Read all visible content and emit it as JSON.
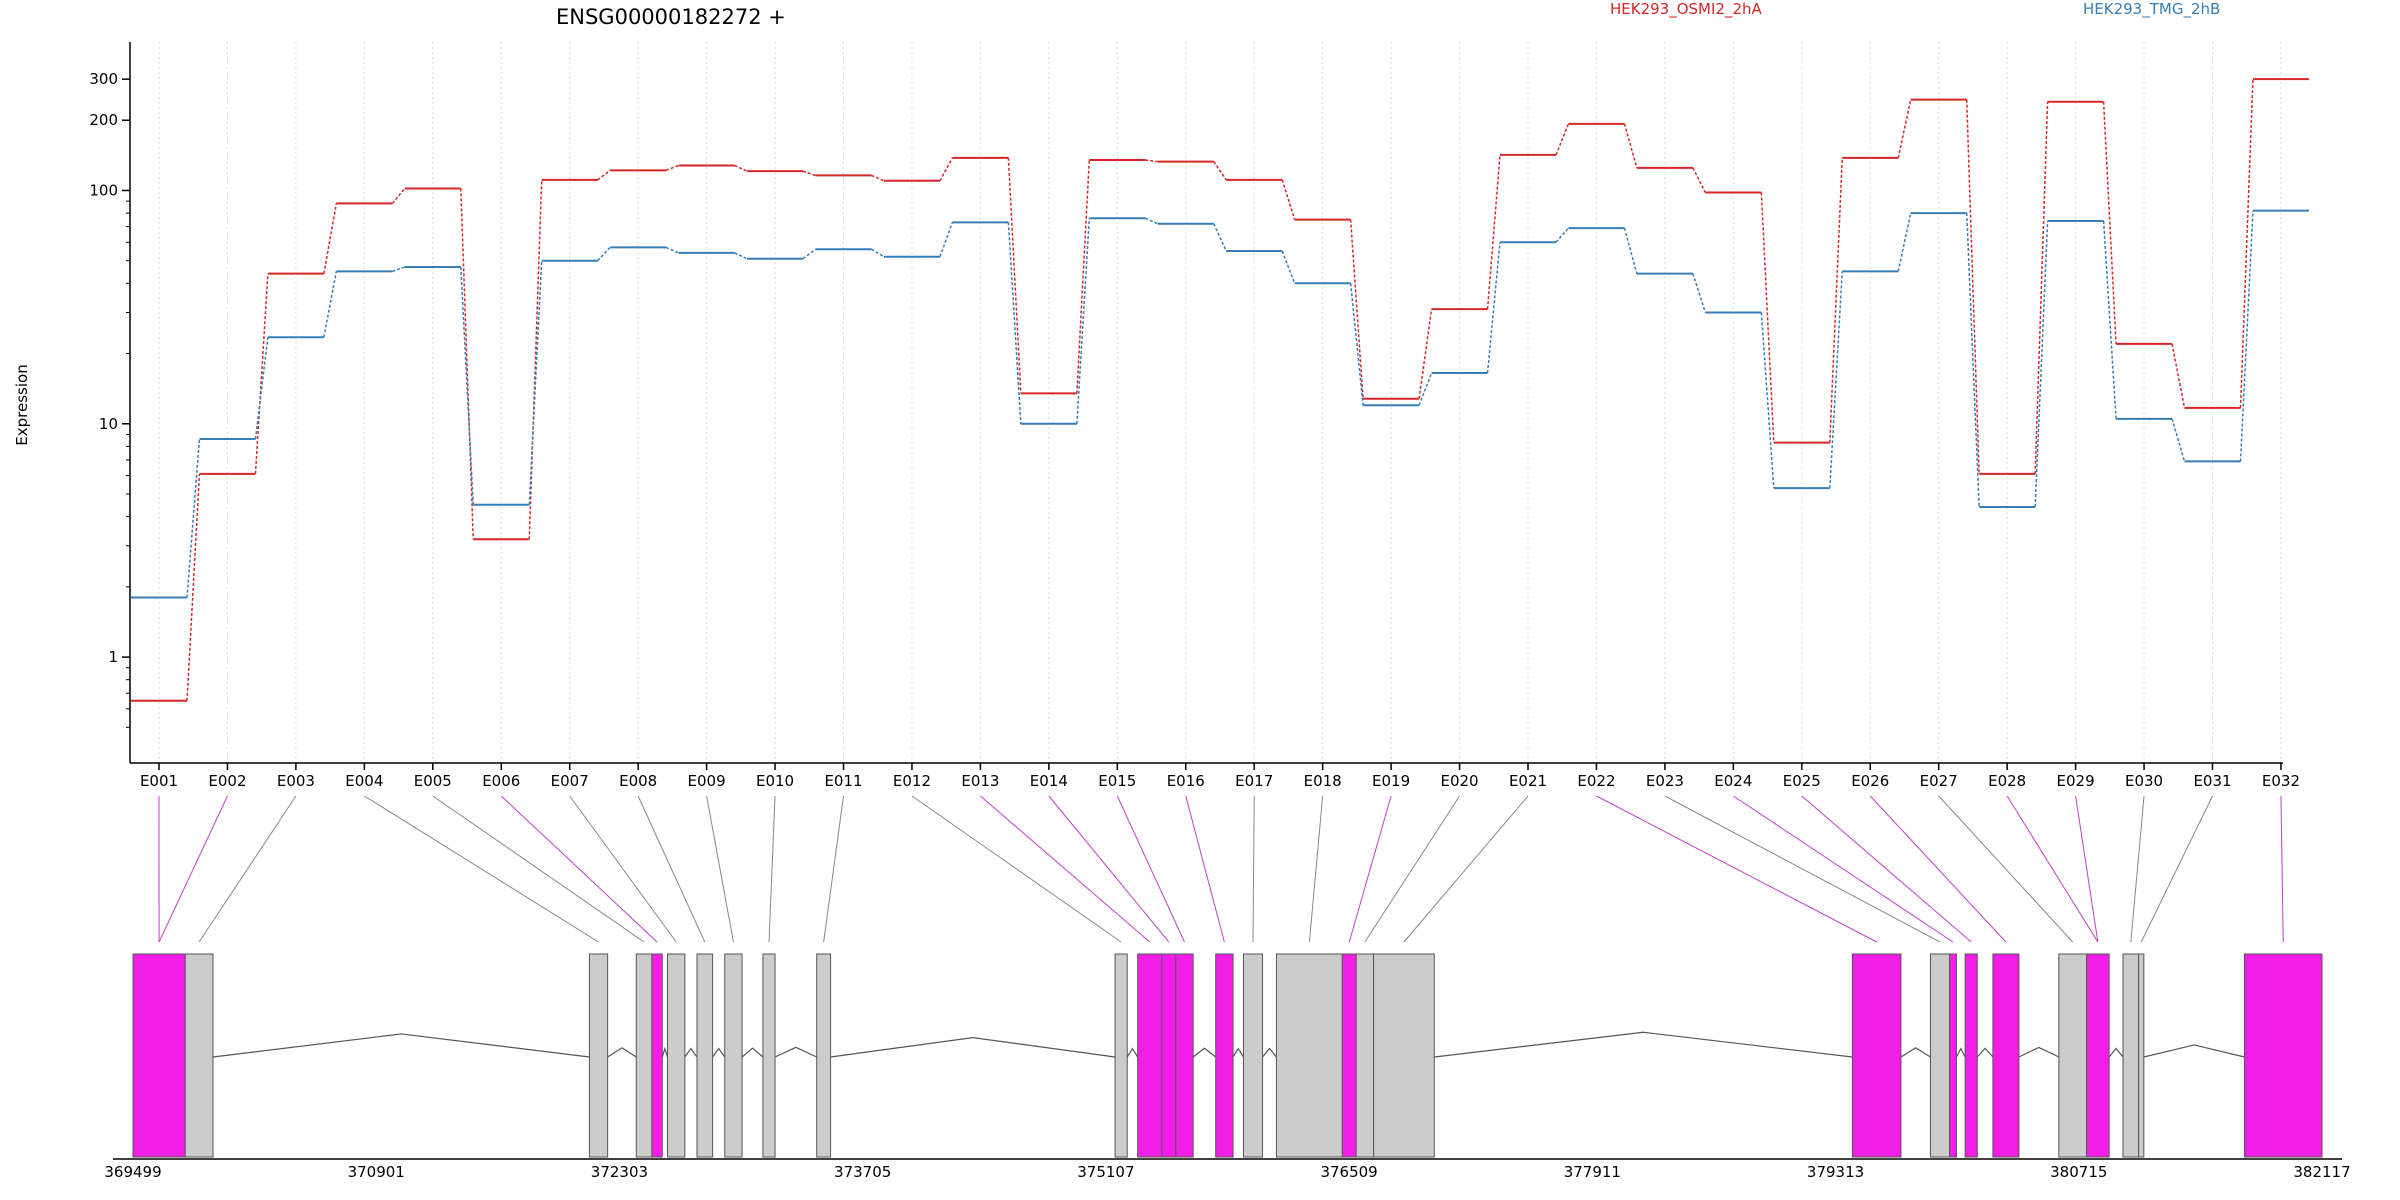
{
  "chart_data": {
    "type": "line",
    "title": "ENSG00000182272 +",
    "ylabel": "Expression",
    "xlabel": "",
    "y_scale": "log",
    "ylim": [
      0.45,
      400
    ],
    "y_ticks": [
      1,
      10,
      100,
      200,
      300
    ],
    "y_tick_labels": [
      "1",
      "10",
      "100",
      "200",
      "300"
    ],
    "grid": "vertical dotted lines at exon positions",
    "legend_placement": "top",
    "categories": [
      "E001",
      "E002",
      "E003",
      "E004",
      "E005",
      "E006",
      "E007",
      "E008",
      "E009",
      "E010",
      "E011",
      "E012",
      "E013",
      "E014",
      "E015",
      "E016",
      "E017",
      "E018",
      "E019",
      "E020",
      "E021",
      "E022",
      "E023",
      "E024",
      "E025",
      "E026",
      "E027",
      "E028",
      "E029",
      "E030",
      "E031",
      "E032"
    ],
    "series": [
      {
        "name": "HEK293_OSMI2_2hA",
        "color": "#d62728",
        "values": [
          0.65,
          6.1,
          44,
          88,
          102,
          3.2,
          111,
          122,
          128,
          121,
          116,
          110,
          138,
          13.5,
          135,
          133,
          111,
          75,
          12.8,
          31,
          142,
          193,
          125,
          98,
          8.3,
          138,
          245,
          6.1,
          240,
          22,
          11.7,
          300
        ]
      },
      {
        "name": "HEK293_TMG_2hB",
        "color": "#377eb8",
        "values": [
          1.8,
          8.6,
          23.5,
          45,
          47,
          4.5,
          50,
          57,
          54,
          51,
          56,
          52,
          73,
          10,
          76,
          72,
          55,
          40,
          12,
          16.5,
          60,
          69,
          44,
          30,
          5.3,
          45,
          80,
          4.4,
          74,
          10.5,
          6.9,
          82
        ]
      }
    ],
    "genomic_axis": {
      "ticks": [
        369499,
        370901,
        372303,
        373705,
        375107,
        376509,
        377911,
        379313,
        380715,
        382117
      ],
      "tick_labels": [
        "369499",
        "370901",
        "372303",
        "373705",
        "375107",
        "376509",
        "377911",
        "379313",
        "380715",
        "382117"
      ],
      "range": [
        369499,
        382117
      ]
    },
    "exon_blocks": [
      {
        "start": 369499,
        "end": 369800,
        "highlight": true
      },
      {
        "start": 369800,
        "end": 369960,
        "highlight": false
      },
      {
        "start": 372130,
        "end": 372235,
        "highlight": false
      },
      {
        "start": 372400,
        "end": 372490,
        "highlight": false
      },
      {
        "start": 372490,
        "end": 372550,
        "highlight": true
      },
      {
        "start": 372580,
        "end": 372680,
        "highlight": false
      },
      {
        "start": 372750,
        "end": 372840,
        "highlight": false
      },
      {
        "start": 372910,
        "end": 373010,
        "highlight": false
      },
      {
        "start": 373130,
        "end": 373200,
        "highlight": false
      },
      {
        "start": 373440,
        "end": 373520,
        "highlight": false
      },
      {
        "start": 375160,
        "end": 375230,
        "highlight": false
      },
      {
        "start": 375290,
        "end": 375430,
        "highlight": true
      },
      {
        "start": 375430,
        "end": 375510,
        "highlight": true
      },
      {
        "start": 375510,
        "end": 375610,
        "highlight": true
      },
      {
        "start": 375740,
        "end": 375840,
        "highlight": true
      },
      {
        "start": 375900,
        "end": 376010,
        "highlight": false
      },
      {
        "start": 376090,
        "end": 376470,
        "highlight": false
      },
      {
        "start": 376470,
        "end": 376550,
        "highlight": true
      },
      {
        "start": 376550,
        "end": 376650,
        "highlight": false
      },
      {
        "start": 376650,
        "end": 377000,
        "highlight": false
      },
      {
        "start": 379410,
        "end": 379690,
        "highlight": true
      },
      {
        "start": 379860,
        "end": 379970,
        "highlight": false
      },
      {
        "start": 379970,
        "end": 380010,
        "highlight": true
      },
      {
        "start": 380060,
        "end": 380130,
        "highlight": true
      },
      {
        "start": 380220,
        "end": 380370,
        "highlight": true
      },
      {
        "start": 380600,
        "end": 380760,
        "highlight": false
      },
      {
        "start": 380760,
        "end": 380890,
        "highlight": true
      },
      {
        "start": 380970,
        "end": 381060,
        "highlight": false
      },
      {
        "start": 381060,
        "end": 381090,
        "highlight": false
      },
      {
        "start": 381670,
        "end": 382117,
        "highlight": true
      }
    ],
    "exon_to_block_links": [
      0,
      0,
      1,
      2,
      3,
      4,
      5,
      6,
      7,
      8,
      9,
      10,
      11,
      12,
      13,
      14,
      15,
      16,
      17,
      18,
      19,
      20,
      21,
      22,
      23,
      24,
      25,
      26,
      26,
      27,
      28,
      29
    ],
    "colors": {
      "highlight": "#f21ee8",
      "exon": "#cccccc",
      "exon_border": "#555555",
      "intron": "#555555",
      "grid": "#d8d8ec"
    }
  }
}
